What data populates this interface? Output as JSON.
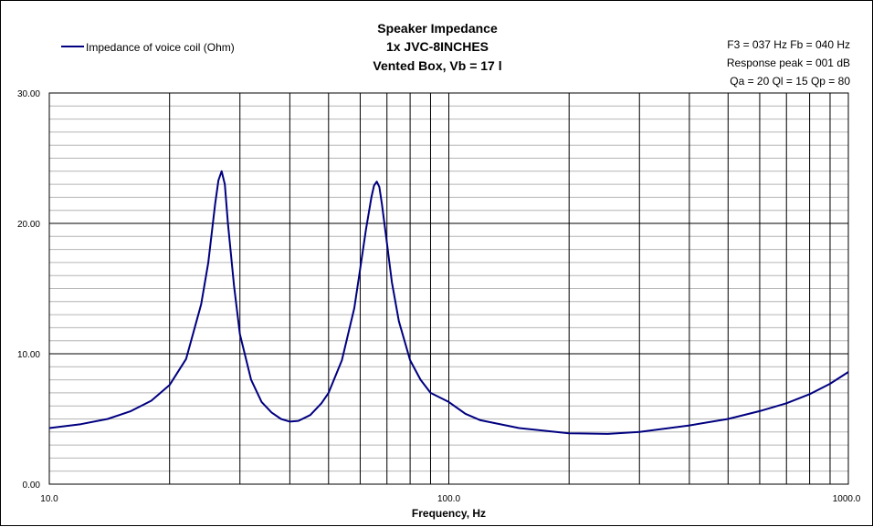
{
  "chart_data": {
    "type": "line",
    "title": [
      "Speaker Impedance",
      "1x JVC-8INCHES",
      "Vented Box, Vb = 17 l"
    ],
    "info": [
      "F3 = 037 Hz  Fb = 040 Hz",
      "Response peak = 001 dB",
      "Qa = 20  Ql = 15  Qp = 80"
    ],
    "xlabel": "Frequency, Hz",
    "ylabel": "",
    "x_scale": "log",
    "xlim": [
      10,
      1000
    ],
    "ylim": [
      0,
      30
    ],
    "x_tick_labels": [
      "10.0",
      "100.0",
      "1000.0"
    ],
    "y_tick_labels": [
      "0.00",
      "10.00",
      "20.00",
      "30.00"
    ],
    "grid": true,
    "legend_position": "top-left",
    "series": [
      {
        "name": "Impedance of voice coil (Ohm)",
        "color": "#000080",
        "x": [
          10,
          12,
          14,
          16,
          18,
          20,
          22,
          24,
          25,
          26,
          26.5,
          27,
          27.5,
          28,
          29,
          30,
          32,
          34,
          36,
          38,
          40,
          42,
          45,
          48,
          50,
          54,
          58,
          60,
          62,
          64,
          65,
          66,
          67,
          68,
          70,
          72,
          75,
          80,
          85,
          90,
          100,
          110,
          120,
          150,
          200,
          250,
          300,
          400,
          500,
          600,
          700,
          800,
          900,
          1000
        ],
        "y": [
          4.3,
          4.6,
          5.0,
          5.6,
          6.4,
          7.6,
          9.6,
          13.8,
          17.0,
          21.5,
          23.3,
          24.0,
          23.0,
          20.0,
          15.2,
          11.5,
          8.0,
          6.3,
          5.5,
          5.0,
          4.8,
          4.85,
          5.3,
          6.2,
          7.0,
          9.5,
          13.5,
          16.5,
          19.5,
          22.0,
          22.9,
          23.2,
          22.8,
          21.5,
          18.5,
          15.5,
          12.5,
          9.5,
          8.0,
          7.0,
          6.3,
          5.4,
          4.9,
          4.3,
          3.9,
          3.85,
          4.0,
          4.5,
          5.0,
          5.6,
          6.2,
          6.9,
          7.7,
          8.6
        ]
      }
    ]
  }
}
